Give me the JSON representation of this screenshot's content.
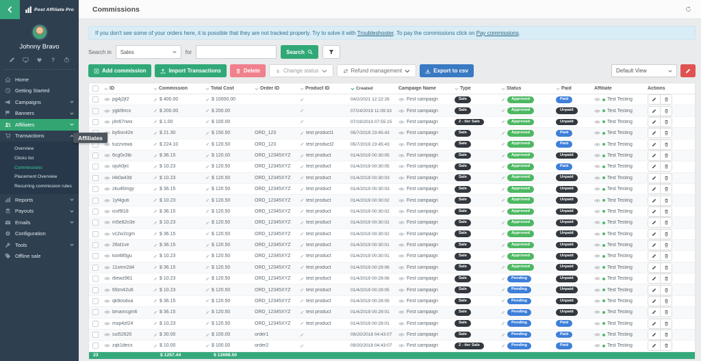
{
  "colors": {
    "sidebar_bg": "#2e3f50",
    "accent_green": "#33a573",
    "button_green": "#31a877",
    "delete_pink": "#f0808c",
    "export_blue": "#3a79c3",
    "footer_green": "#35a97c",
    "pill_dark": "#32383e",
    "pill_approved_green": "#4cb862",
    "pill_blue": "#3d7fd9",
    "alert_bg": "#d9edf7",
    "edit_view_red": "#e05252"
  },
  "sidebar": {
    "logo_text": "Post Affiliate Pro",
    "user_name": "Johnny Bravo",
    "user_icons": [
      "pencil",
      "monitor",
      "heart",
      "question",
      "power"
    ],
    "menu_top": [
      {
        "label": "Home",
        "icon": "home"
      },
      {
        "label": "Getting Started",
        "icon": "clock"
      },
      {
        "label": "Campaigns",
        "icon": "megaphone",
        "chevron": "down"
      },
      {
        "label": "Banners",
        "icon": "flag",
        "chevron": "down"
      },
      {
        "label": "Affiliates",
        "icon": "users",
        "chevron": "down",
        "active": true
      },
      {
        "label": "Transactions",
        "icon": "cart",
        "chevron": "up"
      }
    ],
    "submenu": [
      {
        "label": "Overview"
      },
      {
        "label": "Clicks list"
      },
      {
        "label": "Commissions",
        "active": true
      },
      {
        "label": "Placement Overview"
      },
      {
        "label": "Recurring commission rules"
      }
    ],
    "menu_bottom": [
      {
        "label": "Reports",
        "icon": "chart",
        "chevron": "down"
      },
      {
        "label": "Payouts",
        "icon": "coins",
        "chevron": "down"
      },
      {
        "label": "Emails",
        "icon": "envelope",
        "chevron": "down"
      },
      {
        "label": "Configuration",
        "icon": "gear"
      },
      {
        "label": "Tools",
        "icon": "wrench",
        "chevron": "down"
      },
      {
        "label": "Offline sale",
        "icon": "tag"
      }
    ],
    "tooltip": "Affiliates"
  },
  "header": {
    "title": "Commissions"
  },
  "alert": {
    "text1": "If you don't see some of your orders here, it is possible that they are not tracked properly. Try to solve it with ",
    "link1": "Troubleshooter",
    "text2": ". To pay the commissions click on ",
    "link2": "Pay commissions",
    "text3": "."
  },
  "search": {
    "label_in": "Search in",
    "selected": "Sales",
    "label_for": "for",
    "value": "",
    "button": "Search"
  },
  "toolbar": {
    "add": "Add commission",
    "import": "Import Transactions",
    "delete": "Delete",
    "change_status": "Change status",
    "refund": "Refund management",
    "export": "Export to csv",
    "view_selected": "Default View"
  },
  "table": {
    "columns": [
      {
        "key": "checkbox",
        "label": ""
      },
      {
        "key": "id",
        "label": "ID",
        "sort": "inactive"
      },
      {
        "key": "commission",
        "label": "Commission",
        "sort": "inactive"
      },
      {
        "key": "total_cost",
        "label": "Total Cost",
        "sort": "inactive"
      },
      {
        "key": "order_id",
        "label": "Order ID",
        "sort": "inactive"
      },
      {
        "key": "product_id",
        "label": "Product ID",
        "sort": "inactive"
      },
      {
        "key": "created",
        "label": "Created",
        "sort": "active"
      },
      {
        "key": "campaign",
        "label": "Campaign Name"
      },
      {
        "key": "type",
        "label": "Type",
        "sort": "inactive"
      },
      {
        "key": "status",
        "label": "Status",
        "sort": "inactive"
      },
      {
        "key": "paid",
        "label": "Paid",
        "sort": "inactive"
      },
      {
        "key": "affiliate",
        "label": "Affiliate"
      },
      {
        "key": "actions",
        "label": "Actions"
      }
    ],
    "rows": [
      {
        "id": "pg4j2jf2",
        "commission": "$ 400.00",
        "total_cost": "$ 10000.00",
        "order_id": "",
        "product_id": "",
        "created": "04/2/2021 12:22:26",
        "campaign": "First campaign",
        "type": "Sale",
        "status": "Approved",
        "paid": "Paid",
        "affiliate": "Test Testing"
      },
      {
        "id": "ygkl9ncx",
        "commission": "$ 200.00",
        "total_cost": "$ 200.00",
        "order_id": "",
        "product_id": "",
        "created": "07/24/2019 11:09:33",
        "campaign": "First campaign",
        "type": "Sale",
        "status": "Approved",
        "paid": "Unpaid",
        "affiliate": "Test Testing"
      },
      {
        "id": "j4n67nwx",
        "commission": "$ 1.00",
        "total_cost": "$ 100.00",
        "order_id": "",
        "product_id": "",
        "created": "07/19/2019 07:55:15",
        "campaign": "First campaign",
        "type": "2 - tier Sale",
        "status": "Approved",
        "paid": "Unpaid",
        "affiliate": "Test Testing"
      },
      {
        "id": "by6sn42e",
        "commission": "$ 21.30",
        "total_cost": "$ 150.50",
        "order_id": "ORD_123",
        "product_id": "test product1",
        "created": "05/7/2019 23:45:43",
        "campaign": "First campaign",
        "type": "Sale",
        "status": "Approved",
        "paid": "Paid",
        "affiliate": "Test Testing"
      },
      {
        "id": "tuzzvowa",
        "commission": "$ 224.10",
        "total_cost": "$ 120.50",
        "order_id": "ORD_123",
        "product_id": "test product2",
        "created": "05/7/2019 23:45:43",
        "campaign": "First campaign",
        "type": "Sale",
        "status": "Approved",
        "paid": "Paid",
        "affiliate": "Test Testing"
      },
      {
        "id": "6cg0x3ib",
        "commission": "$ 36.15",
        "total_cost": "$ 120.00",
        "order_id": "ORD_12345XYZ",
        "product_id": "test product",
        "created": "01/4/2019 00:30:05",
        "campaign": "First campaign",
        "type": "Sale",
        "status": "Approved",
        "paid": "Unpaid",
        "affiliate": "Test Testing"
      },
      {
        "id": "ojuh0jrc",
        "commission": "$ 10.23",
        "total_cost": "$ 120.50",
        "order_id": "ORD_12345XYZ",
        "product_id": "test product",
        "created": "01/4/2019 00:30:05",
        "campaign": "First campaign",
        "type": "Sale",
        "status": "Approved",
        "paid": "Paid",
        "affiliate": "Test Testing"
      },
      {
        "id": "l4k0a43d",
        "commission": "$ 10.23",
        "total_cost": "$ 120.50",
        "order_id": "ORD_12345XYZ",
        "product_id": "test product",
        "created": "01/4/2019 00:30:03",
        "campaign": "First campaign",
        "type": "Sale",
        "status": "Approved",
        "paid": "Unpaid",
        "affiliate": "Test Testing"
      },
      {
        "id": "zku46mgy",
        "commission": "$ 36.15",
        "total_cost": "$ 120.50",
        "order_id": "ORD_12345XYZ",
        "product_id": "test product",
        "created": "01/4/2019 00:30:03",
        "campaign": "First campaign",
        "type": "Sale",
        "status": "Approved",
        "paid": "Unpaid",
        "affiliate": "Test Testing"
      },
      {
        "id": "1yf4guti",
        "commission": "$ 10.23",
        "total_cost": "$ 120.50",
        "order_id": "ORD_12345XYZ",
        "product_id": "test product",
        "created": "01/4/2019 00:30:02",
        "campaign": "First campaign",
        "type": "Sale",
        "status": "Approved",
        "paid": "Unpaid",
        "affiliate": "Test Testing"
      },
      {
        "id": "icvf9l18",
        "commission": "$ 36.15",
        "total_cost": "$ 120.50",
        "order_id": "ORD_12345XYZ",
        "product_id": "test product",
        "created": "01/4/2019 00:30:02",
        "campaign": "First campaign",
        "type": "Sale",
        "status": "Approved",
        "paid": "Unpaid",
        "affiliate": "Test Testing"
      },
      {
        "id": "m5e82n3e",
        "commission": "$ 10.23",
        "total_cost": "$ 120.50",
        "order_id": "ORD_12345XYZ",
        "product_id": "test product",
        "created": "01/4/2019 00:30:02",
        "campaign": "First campaign",
        "type": "Sale",
        "status": "Approved",
        "paid": "Unpaid",
        "affiliate": "Test Testing"
      },
      {
        "id": "vc2w2cgm",
        "commission": "$ 36.15",
        "total_cost": "$ 120.50",
        "order_id": "ORD_12345XYZ",
        "product_id": "test product",
        "created": "01/4/2019 00:30:02",
        "campaign": "First campaign",
        "type": "Sale",
        "status": "Approved",
        "paid": "Unpaid",
        "affiliate": "Test Testing"
      },
      {
        "id": "26id1ve",
        "commission": "$ 36.15",
        "total_cost": "$ 120.50",
        "order_id": "ORD_12345XYZ",
        "product_id": "test product",
        "created": "01/4/2019 00:30:01",
        "campaign": "First campaign",
        "type": "Sale",
        "status": "Approved",
        "paid": "Unpaid",
        "affiliate": "Test Testing"
      },
      {
        "id": "kot485gu",
        "commission": "$ 10.23",
        "total_cost": "$ 120.50",
        "order_id": "ORD_12345XYZ",
        "product_id": "test product",
        "created": "01/4/2019 00:30:01",
        "campaign": "First campaign",
        "type": "Sale",
        "status": "Approved",
        "paid": "Unpaid",
        "affiliate": "Test Testing"
      },
      {
        "id": "11smn2d4",
        "commission": "$ 36.15",
        "total_cost": "$ 120.50",
        "order_id": "ORD_12345XYZ",
        "product_id": "test product",
        "created": "01/4/2019 00:29:06",
        "campaign": "First campaign",
        "type": "Sale",
        "status": "Approved",
        "paid": "Unpaid",
        "affiliate": "Test Testing"
      },
      {
        "id": "i6ewz961",
        "commission": "$ 10.23",
        "total_cost": "$ 120.50",
        "order_id": "ORD_12345XYZ",
        "product_id": "test product",
        "created": "01/4/2019 00:29:06",
        "campaign": "First campaign",
        "type": "Sale",
        "status": "Pending",
        "paid": "Unpaid",
        "affiliate": "Test Testing"
      },
      {
        "id": "69zn42u6",
        "commission": "$ 10.23",
        "total_cost": "$ 120.50",
        "order_id": "ORD_12345XYZ",
        "product_id": "test product",
        "created": "01/4/2019 00:29:05",
        "campaign": "First campaign",
        "type": "Sale",
        "status": "Pending",
        "paid": "Unpaid",
        "affiliate": "Test Testing"
      },
      {
        "id": "qk8osdua",
        "commission": "$ 36.15",
        "total_cost": "$ 120.50",
        "order_id": "ORD_12345XYZ",
        "product_id": "test product",
        "created": "01/4/2019 00:29:05",
        "campaign": "First campaign",
        "type": "Sale",
        "status": "Pending",
        "paid": "Unpaid",
        "affiliate": "Test Testing"
      },
      {
        "id": "bmamcgm6",
        "commission": "$ 36.15",
        "total_cost": "$ 120.50",
        "order_id": "ORD_12345XYZ",
        "product_id": "test product",
        "created": "01/4/2019 00:29:01",
        "campaign": "First campaign",
        "type": "Sale",
        "status": "Pending",
        "paid": "Unpaid",
        "affiliate": "Test Testing"
      },
      {
        "id": "mxp4zf24",
        "commission": "$ 10.23",
        "total_cost": "$ 120.50",
        "order_id": "ORD_12345XYZ",
        "product_id": "test product",
        "created": "01/4/2019 00:29:01",
        "campaign": "First campaign",
        "type": "Sale",
        "status": "Pending",
        "paid": "Paid",
        "affiliate": "Test Testing"
      },
      {
        "id": "sul52620",
        "commission": "$ 30.00",
        "total_cost": "$ 100.00",
        "order_id": "order1",
        "product_id": "",
        "created": "09/20/2018 04:43:07",
        "campaign": "First campaign",
        "type": "Sale",
        "status": "Pending",
        "paid": "Paid",
        "affiliate": "Test Testing"
      },
      {
        "id": "zqk1decx",
        "commission": "$ 10.00",
        "total_cost": "$ 100.00",
        "order_id": "order2",
        "product_id": "",
        "created": "09/20/2018 04:43:07",
        "campaign": "First campaign",
        "type": "2 - tier Sale",
        "status": "Pending",
        "paid": "Paid",
        "affiliate": "Test Testing"
      }
    ],
    "footer": {
      "count": "23",
      "commission_total": "$ 1257.44",
      "total_cost_total": "$ 12698.50"
    }
  }
}
